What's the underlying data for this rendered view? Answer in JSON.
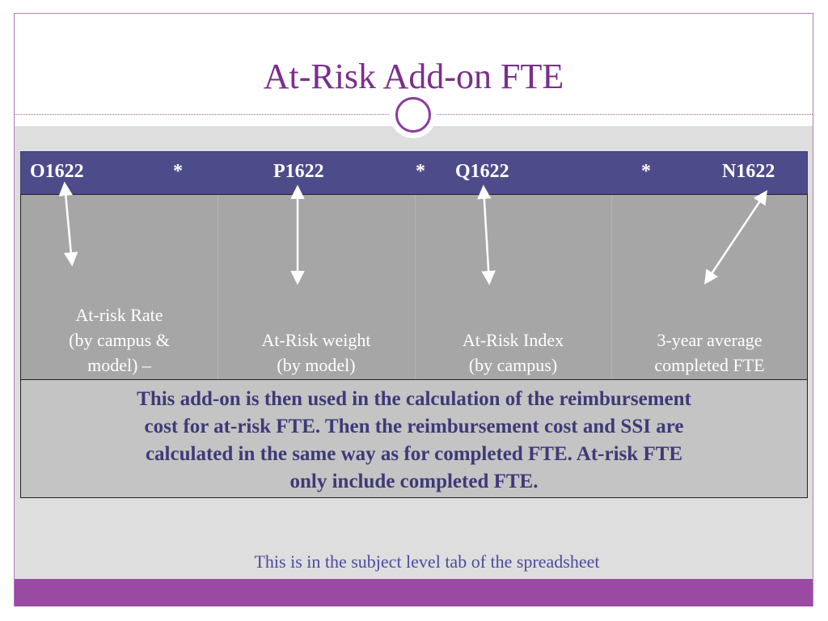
{
  "slide": {
    "title": "At-Risk Add-on FTE",
    "header": {
      "cells": [
        "O1622",
        "*",
        "P1622",
        "*",
        "Q1622",
        "*",
        "N1622"
      ]
    },
    "columns": [
      {
        "lines": [
          "At-risk Rate",
          "(by campus &",
          "model) –"
        ]
      },
      {
        "lines": [
          "At-Risk weight",
          "(by model)"
        ]
      },
      {
        "lines": [
          "At-Risk Index",
          "(by campus)"
        ]
      },
      {
        "lines": [
          "3-year average",
          "completed FTE"
        ]
      }
    ],
    "note_lines": [
      "This add-on is then used in the calculation of the reimbursement",
      "cost for at-risk FTE.  Then the reimbursement cost and SSI are",
      "calculated in the same way as for completed FTE.  At-risk FTE",
      "only include completed FTE."
    ],
    "footer": "This is in the subject level tab of the spreadsheet"
  },
  "icons": {
    "arrows": "double-headed-arrow-icon",
    "title_ornament": "circle-ornament-icon"
  },
  "colors": {
    "title": "#7b2e8c",
    "header_bar": "#4e4b8a",
    "grid": "#a6a6a6",
    "note_box": "#c4c4c4",
    "note_text": "#3e3a78",
    "bottom_bar": "#9b4aa3"
  }
}
